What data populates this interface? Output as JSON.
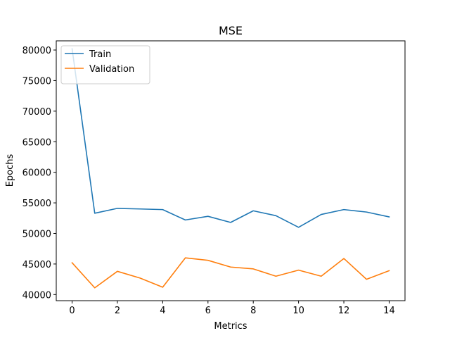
{
  "chart_data": {
    "type": "line",
    "title": "MSE",
    "xlabel": "Metrics",
    "ylabel": "Epochs",
    "xlim": [
      -0.7,
      14.7
    ],
    "ylim": [
      39000,
      81500
    ],
    "xticks": [
      0,
      2,
      4,
      6,
      8,
      10,
      12,
      14
    ],
    "yticks": [
      40000,
      45000,
      50000,
      55000,
      60000,
      65000,
      70000,
      75000,
      80000
    ],
    "x": [
      0,
      1,
      2,
      3,
      4,
      5,
      6,
      7,
      8,
      9,
      10,
      11,
      12,
      13,
      14
    ],
    "series": [
      {
        "name": "Train",
        "color": "#1f77b4",
        "values": [
          80200,
          53300,
          54100,
          54000,
          53900,
          52200,
          52800,
          51800,
          53700,
          52900,
          51000,
          53100,
          53900,
          53500,
          52700
        ]
      },
      {
        "name": "Validation",
        "color": "#ff7f0e",
        "values": [
          45200,
          41100,
          43800,
          42700,
          41200,
          46000,
          45600,
          44500,
          44200,
          43000,
          44000,
          43000,
          45900,
          42500,
          43900
        ]
      }
    ],
    "legend_position": "top-left",
    "grid": false
  }
}
